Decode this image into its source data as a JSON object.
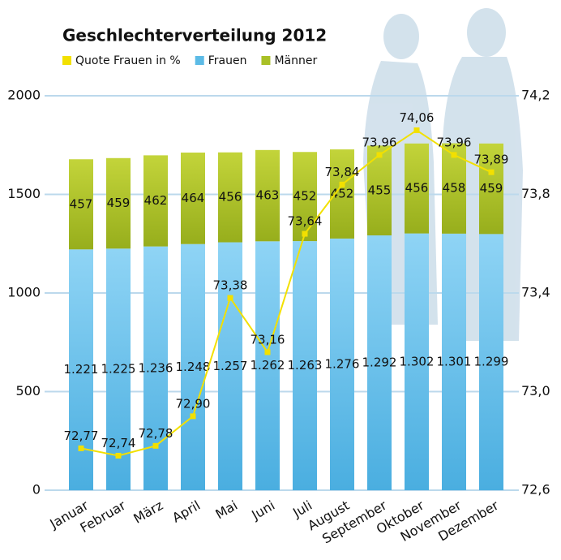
{
  "chart_data": {
    "type": "bar",
    "stacked": true,
    "title": "Geschlechterverteilung 2012",
    "categories": [
      "Januar",
      "Februar",
      "März",
      "April",
      "Mai",
      "Juni",
      "Juli",
      "August",
      "September",
      "Oktober",
      "November",
      "Dezember"
    ],
    "series": [
      {
        "name": "Quote Frauen in %",
        "color": "#f2e000",
        "type": "line",
        "axis": "y2",
        "values": [
          72.77,
          72.74,
          72.78,
          72.9,
          73.38,
          73.16,
          73.64,
          73.84,
          73.96,
          74.06,
          73.96,
          73.89
        ],
        "value_labels": [
          "72,77",
          "72,74",
          "72,78",
          "72,90",
          "73,38",
          "73,16",
          "73,64",
          "73,84",
          "73,96",
          "74,06",
          "73,96",
          "73,89"
        ]
      },
      {
        "name": "Frauen",
        "color": "#5cbbe6",
        "values": [
          1221,
          1225,
          1236,
          1248,
          1257,
          1262,
          1263,
          1276,
          1292,
          1302,
          1301,
          1299
        ],
        "value_labels": [
          "1.221",
          "1.225",
          "1.236",
          "1.248",
          "1.257",
          "1.262",
          "1.263",
          "1.276",
          "1.292",
          "1.302",
          "1.301",
          "1.299"
        ]
      },
      {
        "name": "Männer",
        "color": "#a9c026",
        "values": [
          457,
          459,
          462,
          464,
          456,
          463,
          452,
          452,
          455,
          456,
          458,
          459
        ]
      }
    ],
    "ylim": [
      0,
      2000
    ],
    "yticks": [
      0,
      500,
      1000,
      1500,
      2000
    ],
    "y2lim": [
      72.6,
      74.2
    ],
    "y2ticks": [
      {
        "value": 72.6,
        "label": "72,6"
      },
      {
        "value": 73.0,
        "label": "73,0"
      },
      {
        "value": 73.4,
        "label": "73,4"
      },
      {
        "value": 73.8,
        "label": "73,8"
      },
      {
        "value": 74.2,
        "label": "74,2"
      }
    ],
    "grid": true
  }
}
